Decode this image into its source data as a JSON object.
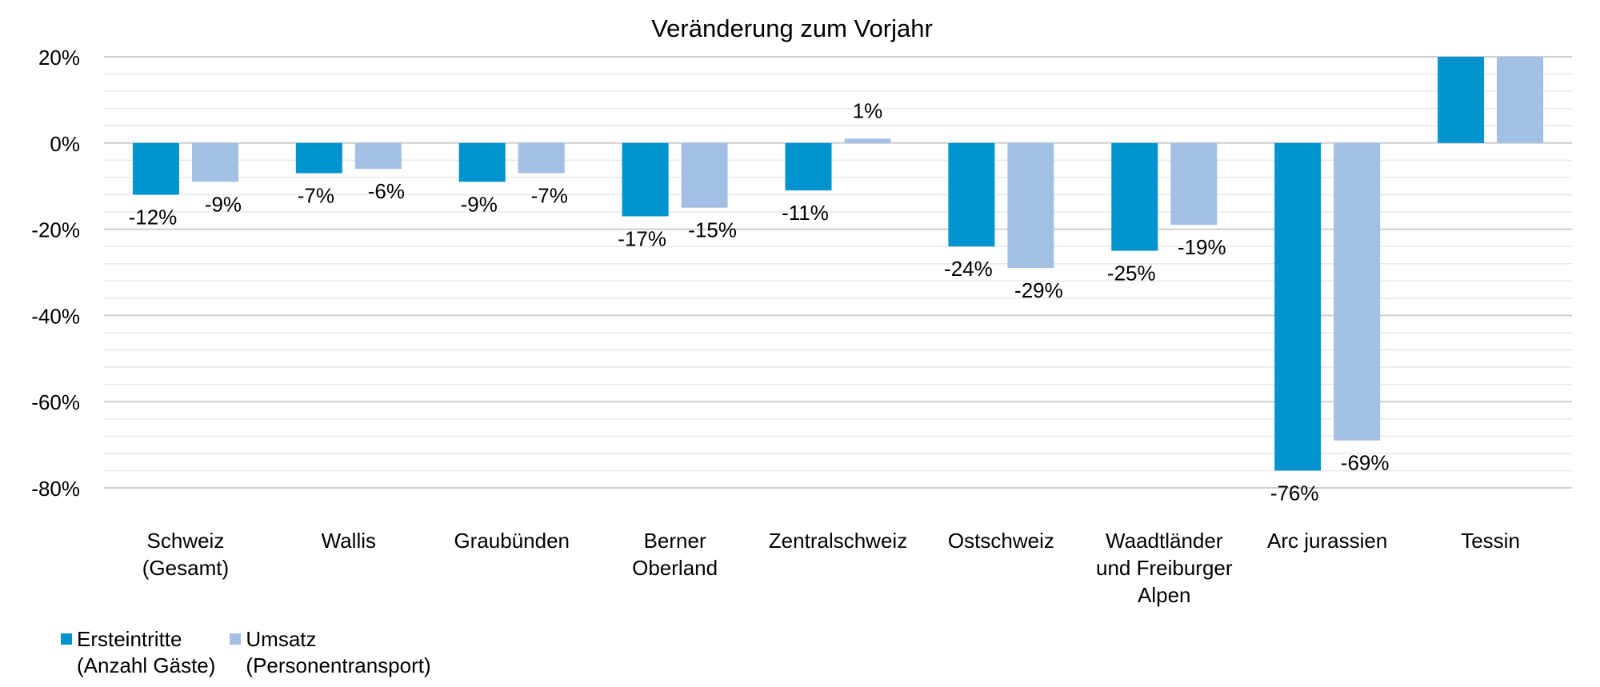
{
  "chart_data": {
    "type": "bar",
    "title": "Veränderung zum Vorjahr",
    "xlabel": "",
    "ylabel": "",
    "ylim": [
      -80,
      20
    ],
    "ytick_values": [
      20,
      0,
      -20,
      -40,
      -60,
      -80
    ],
    "ytick_labels": [
      "20%",
      "0%",
      "-20%",
      "-40%",
      "-60%",
      "-80%"
    ],
    "grid": true,
    "categories": [
      "Schweiz\n(Gesamt)",
      "Wallis",
      "Graubünden",
      "Berner\nOberland",
      "Zentralschweiz",
      "Ostschweiz",
      "Waadtländer\nund Freiburger\nAlpen",
      "Arc jurassien",
      "Tessin"
    ],
    "series": [
      {
        "name": "Ersteintritte\n(Anzahl Gäste)",
        "color": "#0093d0",
        "values": [
          -12,
          -7,
          -9,
          -17,
          -11,
          -24,
          -25,
          -76,
          20
        ],
        "labels": [
          "-12%",
          "-7%",
          "-9%",
          "-17%",
          "-11%",
          "-24%",
          "-25%",
          "-76%",
          null
        ]
      },
      {
        "name": "Umsatz\n(Personentransport)",
        "color": "#a3bfe4",
        "values": [
          -9,
          -6,
          -7,
          -15,
          1,
          -29,
          -19,
          -69,
          20
        ],
        "labels": [
          "-9%",
          "-6%",
          "-7%",
          "-15%",
          "1%",
          "-29%",
          "-19%",
          "-69%",
          null
        ]
      }
    ],
    "legend_position": "bottom-left"
  }
}
